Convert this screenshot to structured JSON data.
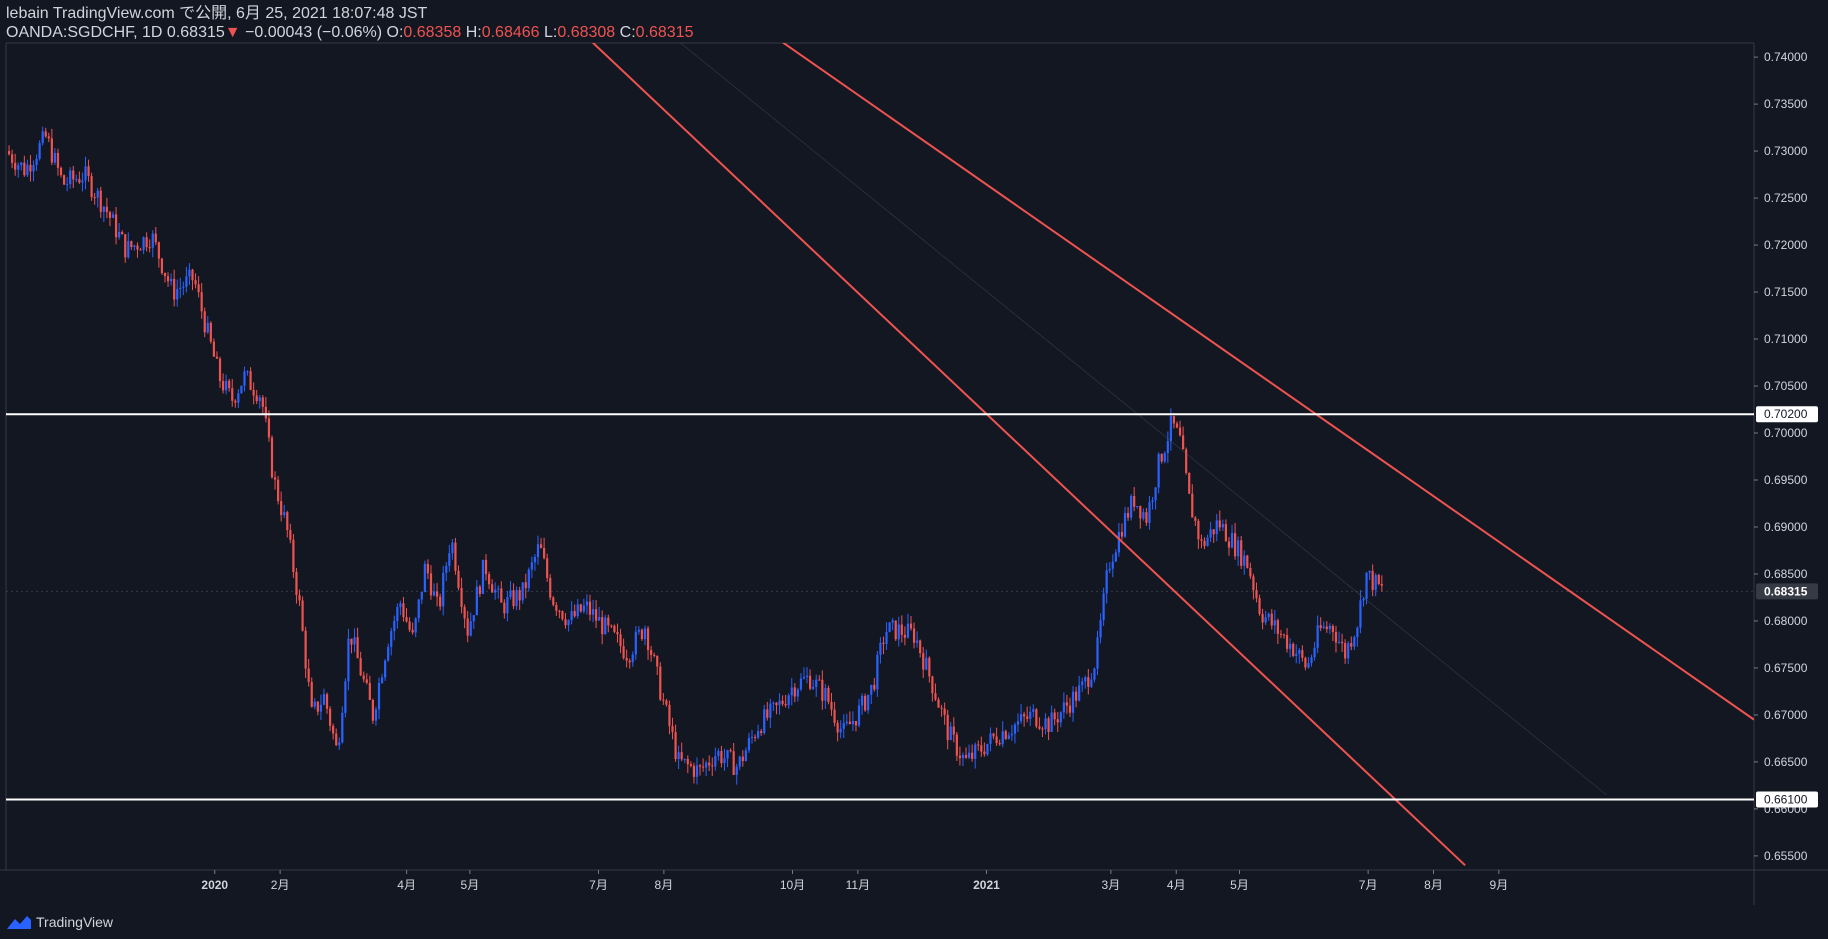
{
  "header": {
    "published": "lebain TradingView.com で公開, 6月 25, 2021 18:07:48 JST",
    "symbol": "OANDA:SGDCHF, 1D",
    "last": "0.68315",
    "arrow": "▼",
    "change": "−0.00043 (−0.06%)",
    "o_label": "O:",
    "o_value": "0.68358",
    "h_label": "H:",
    "h_value": "0.68466",
    "l_label": "L:",
    "l_value": "0.68308",
    "c_label": "C:",
    "c_value": "0.68315"
  },
  "footer": {
    "brand": "TradingView",
    "logo_icon": "tradingview-logo-icon"
  },
  "colors": {
    "background": "#131722",
    "up": "#2962ff",
    "down": "#ef5350",
    "trendline": "#ef5350",
    "level": "#ffffff",
    "grid": "#363a45"
  },
  "chart_data": {
    "type": "candlestick",
    "title": "OANDA:SGDCHF, 1D",
    "ylim": [
      0.6535,
      0.7415
    ],
    "x_range_days": [
      -99,
      730
    ],
    "y_ticks": [
      "0.74000",
      "0.73500",
      "0.73000",
      "0.72500",
      "0.72000",
      "0.71500",
      "0.71000",
      "0.70500",
      "0.70000",
      "0.69500",
      "0.69000",
      "0.68500",
      "0.68000",
      "0.67500",
      "0.67000",
      "0.66500",
      "0.66000",
      "0.65500"
    ],
    "y_tick_values": [
      0.74,
      0.735,
      0.73,
      0.725,
      0.72,
      0.715,
      0.71,
      0.705,
      0.7,
      0.695,
      0.69,
      0.685,
      0.68,
      0.675,
      0.67,
      0.665,
      0.66,
      0.655
    ],
    "x_ticks": [
      {
        "label": "2020",
        "day": 0
      },
      {
        "label": "2月",
        "day": 31
      },
      {
        "label": "4月",
        "day": 91
      },
      {
        "label": "5月",
        "day": 121
      },
      {
        "label": "7月",
        "day": 182
      },
      {
        "label": "8月",
        "day": 213
      },
      {
        "label": "10月",
        "day": 274
      },
      {
        "label": "11月",
        "day": 305
      },
      {
        "label": "2021",
        "day": 366
      },
      {
        "label": "3月",
        "day": 425
      },
      {
        "label": "4月",
        "day": 456
      },
      {
        "label": "5月",
        "day": 486
      },
      {
        "label": "7月",
        "day": 547
      },
      {
        "label": "8月",
        "day": 578
      },
      {
        "label": "9月",
        "day": 609
      }
    ],
    "horizontal_levels": [
      {
        "value": 0.702,
        "label": "0.70200"
      },
      {
        "value": 0.661,
        "label": "0.66100"
      }
    ],
    "current_price": {
      "value": 0.68315,
      "label": "0.68315"
    },
    "trendlines": [
      {
        "name": "channel-upper",
        "from": [
          257,
          0.7435
        ],
        "to": [
          730,
          0.6695
        ]
      },
      {
        "name": "channel-lower",
        "from": [
          170,
          0.7435
        ],
        "to": [
          593,
          0.654
        ]
      },
      {
        "name": "channel-mid",
        "from": [
          210,
          0.7435
        ],
        "to": [
          660,
          0.6615
        ]
      }
    ],
    "price_path": [
      [
        -99,
        0.73
      ],
      [
        -90,
        0.728
      ],
      [
        -80,
        0.7315
      ],
      [
        -72,
        0.7265
      ],
      [
        -62,
        0.7275
      ],
      [
        -52,
        0.724
      ],
      [
        -42,
        0.7195
      ],
      [
        -30,
        0.721
      ],
      [
        -20,
        0.715
      ],
      [
        -10,
        0.7165
      ],
      [
        -5,
        0.712
      ],
      [
        2,
        0.706
      ],
      [
        8,
        0.7035
      ],
      [
        14,
        0.706
      ],
      [
        22,
        0.704
      ],
      [
        28,
        0.695
      ],
      [
        34,
        0.69
      ],
      [
        40,
        0.682
      ],
      [
        46,
        0.67
      ],
      [
        52,
        0.672
      ],
      [
        58,
        0.666
      ],
      [
        64,
        0.679
      ],
      [
        70,
        0.674
      ],
      [
        75,
        0.67
      ],
      [
        82,
        0.678
      ],
      [
        88,
        0.682
      ],
      [
        94,
        0.678
      ],
      [
        100,
        0.686
      ],
      [
        106,
        0.681
      ],
      [
        112,
        0.689
      ],
      [
        120,
        0.679
      ],
      [
        128,
        0.686
      ],
      [
        136,
        0.6815
      ],
      [
        146,
        0.683
      ],
      [
        154,
        0.688
      ],
      [
        160,
        0.6825
      ],
      [
        168,
        0.68
      ],
      [
        176,
        0.6815
      ],
      [
        186,
        0.679
      ],
      [
        196,
        0.6765
      ],
      [
        204,
        0.6795
      ],
      [
        212,
        0.672
      ],
      [
        220,
        0.665
      ],
      [
        230,
        0.664
      ],
      [
        238,
        0.666
      ],
      [
        248,
        0.6645
      ],
      [
        258,
        0.669
      ],
      [
        266,
        0.6705
      ],
      [
        274,
        0.673
      ],
      [
        282,
        0.674
      ],
      [
        290,
        0.672
      ],
      [
        298,
        0.668
      ],
      [
        306,
        0.6705
      ],
      [
        312,
        0.673
      ],
      [
        318,
        0.679
      ],
      [
        324,
        0.679
      ],
      [
        332,
        0.6785
      ],
      [
        340,
        0.6735
      ],
      [
        348,
        0.668
      ],
      [
        356,
        0.665
      ],
      [
        364,
        0.6665
      ],
      [
        372,
        0.668
      ],
      [
        380,
        0.669
      ],
      [
        388,
        0.67
      ],
      [
        396,
        0.669
      ],
      [
        404,
        0.671
      ],
      [
        412,
        0.673
      ],
      [
        418,
        0.676
      ],
      [
        424,
        0.686
      ],
      [
        430,
        0.69
      ],
      [
        436,
        0.693
      ],
      [
        442,
        0.691
      ],
      [
        448,
        0.697
      ],
      [
        454,
        0.701
      ],
      [
        458,
        0.699
      ],
      [
        462,
        0.693
      ],
      [
        468,
        0.688
      ],
      [
        476,
        0.6905
      ],
      [
        484,
        0.688
      ],
      [
        490,
        0.686
      ],
      [
        496,
        0.681
      ],
      [
        504,
        0.679
      ],
      [
        512,
        0.677
      ],
      [
        518,
        0.675
      ],
      [
        524,
        0.679
      ],
      [
        530,
        0.6795
      ],
      [
        536,
        0.6765
      ],
      [
        542,
        0.68
      ],
      [
        546,
        0.685
      ],
      [
        550,
        0.684
      ],
      [
        554,
        0.6832
      ]
    ]
  }
}
